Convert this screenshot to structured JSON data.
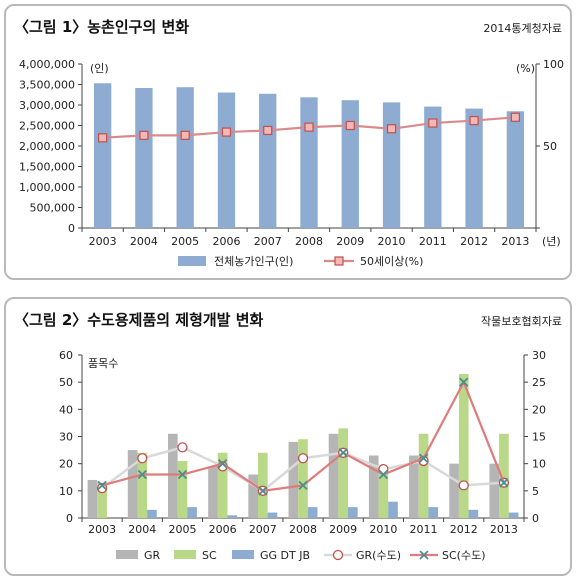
{
  "charts": [
    {
      "title": "〈그림 1〉농촌인구의 변화",
      "source": "2014통계청자료",
      "chart_data": {
        "type": "bar",
        "categories": [
          "2003",
          "2004",
          "2005",
          "2006",
          "2007",
          "2008",
          "2009",
          "2010",
          "2011",
          "2012",
          "2013"
        ],
        "x_unit": "(년)",
        "y_left": {
          "unit": "(인)",
          "ticks": [
            "0",
            "500,000",
            "1,000,000",
            "1,500,000",
            "2,000,000",
            "2,500,000",
            "3,000,000",
            "3,500,000",
            "4,000,000"
          ],
          "ylim": [
            0,
            4000000
          ]
        },
        "y_right": {
          "unit": "(%)",
          "ticks": [
            "50",
            "100"
          ],
          "ylim": [
            0,
            100
          ]
        },
        "series": [
          {
            "name": "전체농가인구(인)",
            "type": "bar",
            "axis": "left",
            "color": "#8eabd1",
            "values": [
              3530000,
              3415000,
              3434000,
              3304000,
              3274000,
              3187000,
              3117000,
              3063000,
              2962000,
              2912000,
              2847000
            ]
          },
          {
            "name": "50세이상(%)",
            "type": "line",
            "axis": "right",
            "color": "#d98a8c",
            "marker_fill": "#f2b8b7",
            "values": [
              55.0,
              56.5,
              56.5,
              58.5,
              59.5,
              61.5,
              62.5,
              60.5,
              64.0,
              65.5,
              67.5
            ]
          }
        ],
        "grid": false,
        "legend": "bottom"
      }
    },
    {
      "title": "〈그림 2〉수도용제품의 제형개발 변화",
      "source": "작물보호협회자료",
      "chart_data": {
        "type": "bar",
        "categories": [
          "2003",
          "2004",
          "2005",
          "2006",
          "2007",
          "2008",
          "2009",
          "2010",
          "2011",
          "2012",
          "2013"
        ],
        "y_left": {
          "unit": "품목수",
          "ticks": [
            "0",
            "10",
            "20",
            "30",
            "40",
            "50",
            "60"
          ],
          "ylim": [
            0,
            60
          ]
        },
        "y_right": {
          "ticks": [
            "0",
            "5",
            "10",
            "15",
            "20",
            "25",
            "30"
          ],
          "ylim": [
            0,
            30
          ]
        },
        "series": [
          {
            "name": "GR",
            "type": "bar",
            "axis": "left",
            "color": "#b5b5b5",
            "values": [
              14,
              25,
              31,
              19,
              16,
              28,
              31,
              23,
              23,
              20,
              20
            ]
          },
          {
            "name": "SC",
            "type": "bar",
            "axis": "left",
            "color": "#b9d888",
            "values": [
              13,
              24,
              21,
              24,
              24,
              29,
              33,
              17,
              31,
              53,
              31
            ]
          },
          {
            "name": "GG DT JB",
            "type": "bar",
            "axis": "left",
            "color": "#8eabd1",
            "values": [
              0,
              3,
              4,
              1,
              2,
              4,
              4,
              6,
              4,
              3,
              2
            ]
          },
          {
            "name": "GR(수도)",
            "type": "line",
            "axis": "right",
            "color": "#d9d9d9",
            "marker": "circle",
            "marker_edge": "#c0504d",
            "values": [
              5.5,
              11,
              13,
              9.5,
              5,
              11,
              12,
              9,
              10.5,
              6,
              6.5
            ]
          },
          {
            "name": "SC(수도)",
            "type": "line",
            "axis": "right",
            "color": "#e07b7b",
            "marker": "x",
            "marker_color": "#4a8f8f",
            "values": [
              6,
              8,
              8,
              10,
              5,
              6,
              12,
              8,
              11,
              25,
              6.5
            ]
          }
        ],
        "grid": false,
        "legend": "bottom"
      }
    }
  ]
}
